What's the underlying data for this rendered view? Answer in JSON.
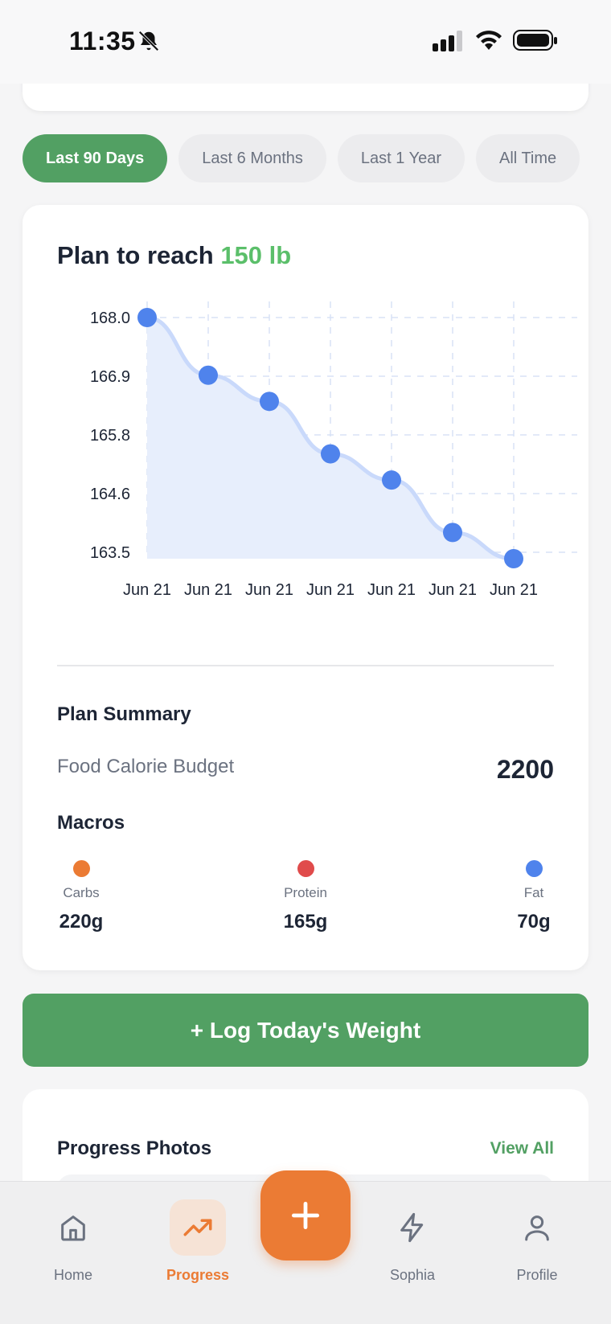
{
  "status_bar": {
    "time": "11:35"
  },
  "filters": {
    "chips": [
      {
        "label": "Last 90 Days",
        "active": true
      },
      {
        "label": "Last 6 Months",
        "active": false
      },
      {
        "label": "Last 1 Year",
        "active": false
      },
      {
        "label": "All Time",
        "active": false
      }
    ]
  },
  "plan": {
    "title_prefix": "Plan to reach",
    "target": "150 lb"
  },
  "chart_data": {
    "type": "area",
    "categories": [
      "Jun 21",
      "Jun 21",
      "Jun 21",
      "Jun 21",
      "Jun 21",
      "Jun 21",
      "Jun 21"
    ],
    "values": [
      168.0,
      166.9,
      166.4,
      165.4,
      164.9,
      163.9,
      163.4
    ],
    "y_ticks": [
      "168.0",
      "166.9",
      "165.8",
      "164.6",
      "163.5"
    ],
    "ylim": [
      163.4,
      168.0
    ],
    "grid": true,
    "title": "",
    "xlabel": "",
    "ylabel": "",
    "colors": {
      "line": "#c9d9fb",
      "fill": "#e7eefc",
      "point": "#4f83ec",
      "grid": "#d8e2f6"
    }
  },
  "summary": {
    "title": "Plan Summary",
    "budget_label": "Food Calorie Budget",
    "budget_value": "2200",
    "macros_title": "Macros",
    "macros": [
      {
        "label": "Carbs",
        "value": "220g",
        "color": "#eb7b34"
      },
      {
        "label": "Protein",
        "value": "165g",
        "color": "#e04b4b"
      },
      {
        "label": "Fat",
        "value": "70g",
        "color": "#4f83ec"
      }
    ]
  },
  "log_button": {
    "label": "+ Log Today's Weight"
  },
  "photos": {
    "title": "Progress Photos",
    "view_all": "View All"
  },
  "nav": {
    "items": [
      {
        "label": "Home",
        "icon": "home-icon"
      },
      {
        "label": "Progress",
        "icon": "trending-up-icon",
        "active": true
      },
      {
        "label": "Sophia",
        "icon": "lightning-icon"
      },
      {
        "label": "Profile",
        "icon": "user-icon"
      }
    ],
    "fab_icon": "plus-icon"
  },
  "theme": {
    "accent_green": "#52a063",
    "accent_orange": "#eb7b34"
  }
}
